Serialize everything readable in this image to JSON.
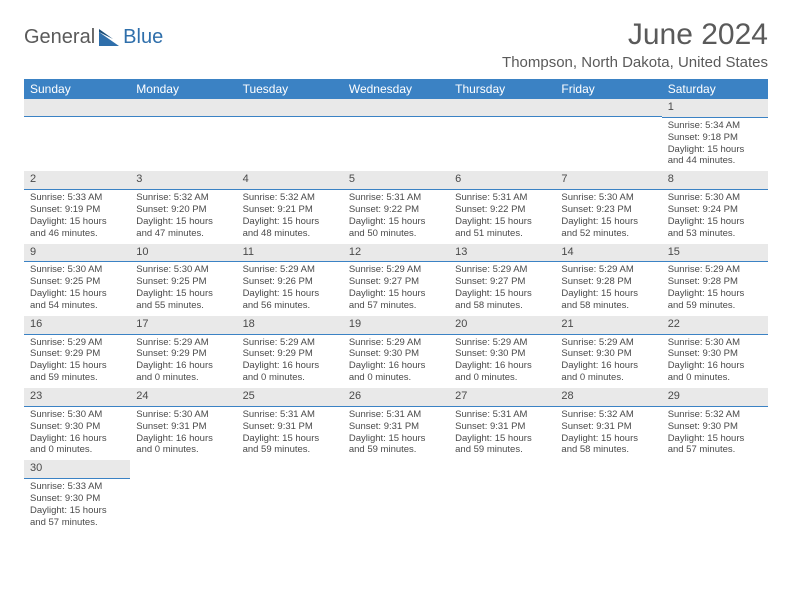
{
  "logo": {
    "text_a": "General",
    "text_b": "Blue"
  },
  "title": "June 2024",
  "location": "Thompson, North Dakota, United States",
  "colors": {
    "header_bg": "#3b82c4",
    "header_text": "#ffffff",
    "daynum_bg": "#e9e9e9",
    "text": "#4a4a4a",
    "rule": "#3b82c4"
  },
  "day_headers": [
    "Sunday",
    "Monday",
    "Tuesday",
    "Wednesday",
    "Thursday",
    "Friday",
    "Saturday"
  ],
  "weeks": [
    [
      null,
      null,
      null,
      null,
      null,
      null,
      {
        "n": "1",
        "sr": "Sunrise: 5:34 AM",
        "ss": "Sunset: 9:18 PM",
        "dl": "Daylight: 15 hours and 44 minutes."
      }
    ],
    [
      {
        "n": "2",
        "sr": "Sunrise: 5:33 AM",
        "ss": "Sunset: 9:19 PM",
        "dl": "Daylight: 15 hours and 46 minutes."
      },
      {
        "n": "3",
        "sr": "Sunrise: 5:32 AM",
        "ss": "Sunset: 9:20 PM",
        "dl": "Daylight: 15 hours and 47 minutes."
      },
      {
        "n": "4",
        "sr": "Sunrise: 5:32 AM",
        "ss": "Sunset: 9:21 PM",
        "dl": "Daylight: 15 hours and 48 minutes."
      },
      {
        "n": "5",
        "sr": "Sunrise: 5:31 AM",
        "ss": "Sunset: 9:22 PM",
        "dl": "Daylight: 15 hours and 50 minutes."
      },
      {
        "n": "6",
        "sr": "Sunrise: 5:31 AM",
        "ss": "Sunset: 9:22 PM",
        "dl": "Daylight: 15 hours and 51 minutes."
      },
      {
        "n": "7",
        "sr": "Sunrise: 5:30 AM",
        "ss": "Sunset: 9:23 PM",
        "dl": "Daylight: 15 hours and 52 minutes."
      },
      {
        "n": "8",
        "sr": "Sunrise: 5:30 AM",
        "ss": "Sunset: 9:24 PM",
        "dl": "Daylight: 15 hours and 53 minutes."
      }
    ],
    [
      {
        "n": "9",
        "sr": "Sunrise: 5:30 AM",
        "ss": "Sunset: 9:25 PM",
        "dl": "Daylight: 15 hours and 54 minutes."
      },
      {
        "n": "10",
        "sr": "Sunrise: 5:30 AM",
        "ss": "Sunset: 9:25 PM",
        "dl": "Daylight: 15 hours and 55 minutes."
      },
      {
        "n": "11",
        "sr": "Sunrise: 5:29 AM",
        "ss": "Sunset: 9:26 PM",
        "dl": "Daylight: 15 hours and 56 minutes."
      },
      {
        "n": "12",
        "sr": "Sunrise: 5:29 AM",
        "ss": "Sunset: 9:27 PM",
        "dl": "Daylight: 15 hours and 57 minutes."
      },
      {
        "n": "13",
        "sr": "Sunrise: 5:29 AM",
        "ss": "Sunset: 9:27 PM",
        "dl": "Daylight: 15 hours and 58 minutes."
      },
      {
        "n": "14",
        "sr": "Sunrise: 5:29 AM",
        "ss": "Sunset: 9:28 PM",
        "dl": "Daylight: 15 hours and 58 minutes."
      },
      {
        "n": "15",
        "sr": "Sunrise: 5:29 AM",
        "ss": "Sunset: 9:28 PM",
        "dl": "Daylight: 15 hours and 59 minutes."
      }
    ],
    [
      {
        "n": "16",
        "sr": "Sunrise: 5:29 AM",
        "ss": "Sunset: 9:29 PM",
        "dl": "Daylight: 15 hours and 59 minutes."
      },
      {
        "n": "17",
        "sr": "Sunrise: 5:29 AM",
        "ss": "Sunset: 9:29 PM",
        "dl": "Daylight: 16 hours and 0 minutes."
      },
      {
        "n": "18",
        "sr": "Sunrise: 5:29 AM",
        "ss": "Sunset: 9:29 PM",
        "dl": "Daylight: 16 hours and 0 minutes."
      },
      {
        "n": "19",
        "sr": "Sunrise: 5:29 AM",
        "ss": "Sunset: 9:30 PM",
        "dl": "Daylight: 16 hours and 0 minutes."
      },
      {
        "n": "20",
        "sr": "Sunrise: 5:29 AM",
        "ss": "Sunset: 9:30 PM",
        "dl": "Daylight: 16 hours and 0 minutes."
      },
      {
        "n": "21",
        "sr": "Sunrise: 5:29 AM",
        "ss": "Sunset: 9:30 PM",
        "dl": "Daylight: 16 hours and 0 minutes."
      },
      {
        "n": "22",
        "sr": "Sunrise: 5:30 AM",
        "ss": "Sunset: 9:30 PM",
        "dl": "Daylight: 16 hours and 0 minutes."
      }
    ],
    [
      {
        "n": "23",
        "sr": "Sunrise: 5:30 AM",
        "ss": "Sunset: 9:30 PM",
        "dl": "Daylight: 16 hours and 0 minutes."
      },
      {
        "n": "24",
        "sr": "Sunrise: 5:30 AM",
        "ss": "Sunset: 9:31 PM",
        "dl": "Daylight: 16 hours and 0 minutes."
      },
      {
        "n": "25",
        "sr": "Sunrise: 5:31 AM",
        "ss": "Sunset: 9:31 PM",
        "dl": "Daylight: 15 hours and 59 minutes."
      },
      {
        "n": "26",
        "sr": "Sunrise: 5:31 AM",
        "ss": "Sunset: 9:31 PM",
        "dl": "Daylight: 15 hours and 59 minutes."
      },
      {
        "n": "27",
        "sr": "Sunrise: 5:31 AM",
        "ss": "Sunset: 9:31 PM",
        "dl": "Daylight: 15 hours and 59 minutes."
      },
      {
        "n": "28",
        "sr": "Sunrise: 5:32 AM",
        "ss": "Sunset: 9:31 PM",
        "dl": "Daylight: 15 hours and 58 minutes."
      },
      {
        "n": "29",
        "sr": "Sunrise: 5:32 AM",
        "ss": "Sunset: 9:30 PM",
        "dl": "Daylight: 15 hours and 57 minutes."
      }
    ],
    [
      {
        "n": "30",
        "sr": "Sunrise: 5:33 AM",
        "ss": "Sunset: 9:30 PM",
        "dl": "Daylight: 15 hours and 57 minutes."
      },
      null,
      null,
      null,
      null,
      null,
      null
    ]
  ]
}
